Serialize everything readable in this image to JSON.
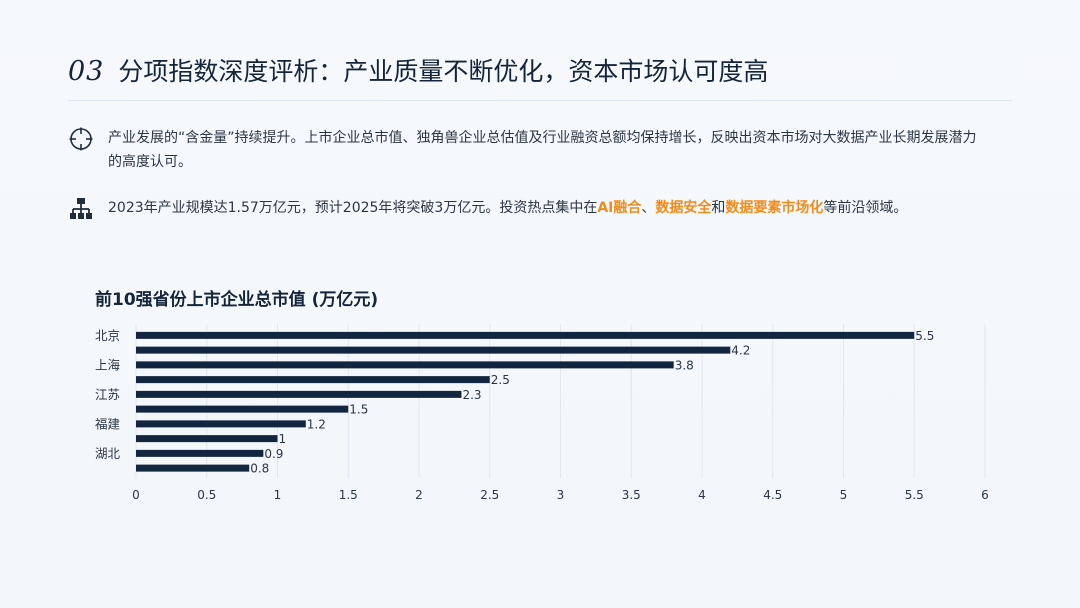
{
  "header": {
    "number": "03",
    "title": "分项指数深度评析：产业质量不断优化，资本市场认可度高"
  },
  "bullets": [
    {
      "icon": "crosshair-icon",
      "text": "产业发展的“含金量”持续提升。上市企业总市值、独角兽企业总估值及行业融资总额均保持增长，反映出资本市场对大数据产业长期发展潜力的高度认可。"
    },
    {
      "icon": "org-chart-icon",
      "text_before": "2023年产业规模达1.57万亿元，预计2025年将突破3万亿元。投资热点集中在",
      "hl1": "AI融合",
      "sep1": "、",
      "hl2": "数据安全",
      "sep2": "和",
      "hl3": "数据要素市场化",
      "text_after": "等前沿领域。",
      "highlight_color": "#f08c1e"
    }
  ],
  "chart_data": {
    "type": "bar",
    "orientation": "horizontal",
    "title": "前10强省份上市企业总市值 (万亿元)",
    "categories": [
      "北京",
      "",
      "上海",
      "",
      "江苏",
      "",
      "福建",
      "",
      "湖北",
      ""
    ],
    "values": [
      5.5,
      4.2,
      3.8,
      2.5,
      2.3,
      1.5,
      1.2,
      1,
      0.9,
      0.8
    ],
    "value_labels": [
      "5.5",
      "4.2",
      "3.8",
      "2.5",
      "2.3",
      "1.5",
      "1.2",
      "1",
      "0.9",
      "0.8"
    ],
    "xlim": [
      0,
      6
    ],
    "xticks": [
      "0",
      "0.5",
      "1",
      "1.5",
      "2",
      "2.5",
      "3",
      "3.5",
      "4",
      "4.5",
      "5",
      "5.5",
      "6"
    ],
    "xlabel": "",
    "ylabel": "",
    "grid": "vertical",
    "legend": "none",
    "bar_color": "#13263f",
    "grid_color": "#e2e7ee"
  }
}
